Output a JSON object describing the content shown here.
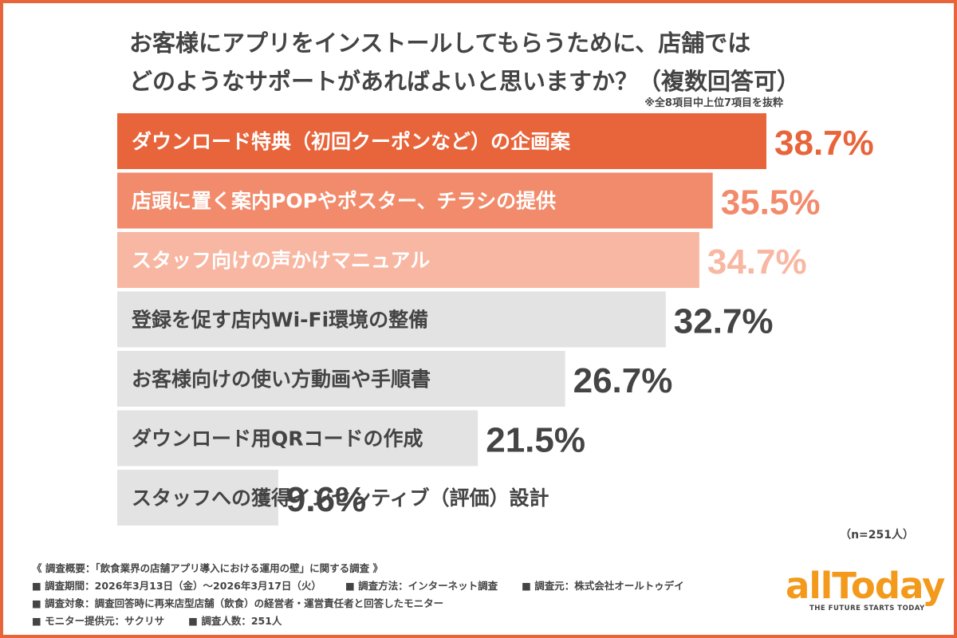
{
  "header": {
    "title_line1": "お客様にアプリをインストールしてもらうために、店舗では",
    "title_line2": "どのようなサポートがあればよいと思いますか？（複数回答可）",
    "note": "※全8項目中上位7項目を抜粋"
  },
  "chart_data": {
    "type": "bar",
    "orientation": "horizontal",
    "categories": [
      "ダウンロード特典（初回クーポンなど）の企画案",
      "店頭に置く案内POPやポスター、チラシの提供",
      "スタッフ向けの声かけマニュアル",
      "登録を促す店内Wi-Fi環境の整備",
      "お客様向けの使い方動画や手順書",
      "ダウンロード用QRコードの作成",
      "スタッフへの獲得インセンティブ（評価）設計"
    ],
    "values": [
      38.7,
      35.5,
      34.7,
      32.7,
      26.7,
      21.5,
      9.6
    ],
    "value_labels": [
      "38.7%",
      "35.5%",
      "34.7%",
      "32.7%",
      "26.7%",
      "21.5%",
      "9.6%"
    ],
    "bar_colors": [
      "#e8643a",
      "#f28b6b",
      "#f8b7a2",
      "#e3e3e3",
      "#e3e3e3",
      "#e3e3e3",
      "#e3e3e3"
    ],
    "label_colors": [
      "#ffffff",
      "#ffffff",
      "#ffffff",
      "#444444",
      "#444444",
      "#444444",
      "#444444"
    ],
    "value_colors": [
      "#e8643a",
      "#f28b6b",
      "#f8b7a2",
      "#444444",
      "#444444",
      "#444444",
      "#444444"
    ],
    "xlim": [
      0,
      40
    ]
  },
  "sample": "（n=251人）",
  "footer": {
    "summary": "《 調査概要：「飲食業界の店舗アプリ導入における運用の壁」に関する調査 》",
    "period": "■ 調査期間：2026年3月13日（金）〜2026年3月17日（火）",
    "method": "■ 調査方法：インターネット調査",
    "source": "■ 調査元：株式会社オールトゥデイ",
    "target": "■ 調査対象：調査回答時に再来店型店舗（飲食）の経営者・運営責任者と回答したモニター",
    "provider": "■ モニター提供元：サクリサ",
    "count": "■ 調査人数：251人"
  },
  "logo": {
    "name": "allToday",
    "tagline": "THE FUTURE STARTS TODAY",
    "color": "#f39a1c"
  }
}
